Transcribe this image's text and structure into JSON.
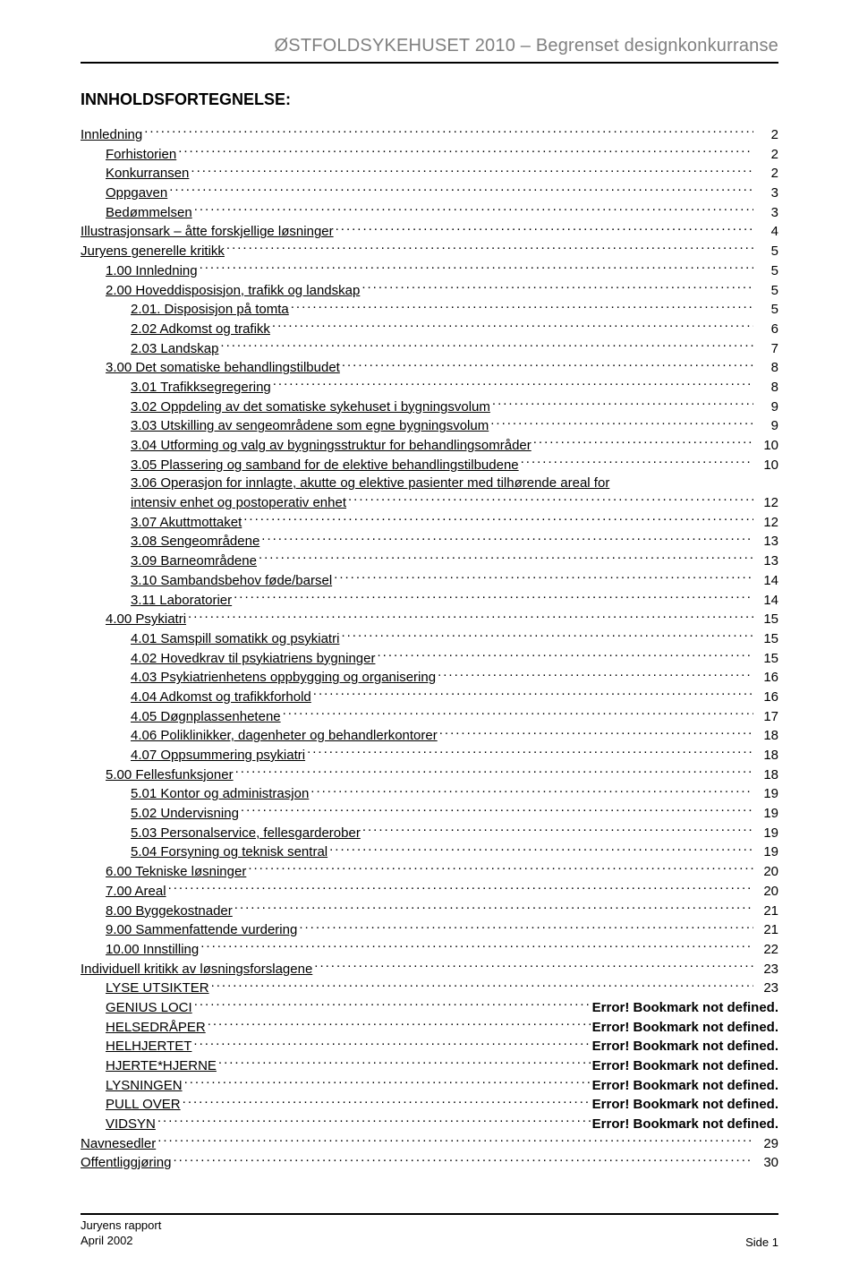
{
  "header": "ØSTFOLDSYKEHUSET 2010  – Begrenset designkonkurranse",
  "title": "INNHOLDSFORTEGNELSE:",
  "error_text": "Error! Bookmark not defined.",
  "toc": [
    {
      "indent": 0,
      "label": "Innledning",
      "page": "2"
    },
    {
      "indent": 1,
      "label": "Forhistorien",
      "page": "2"
    },
    {
      "indent": 1,
      "label": "Konkurransen",
      "page": "2"
    },
    {
      "indent": 1,
      "label": "Oppgaven",
      "page": "3"
    },
    {
      "indent": 1,
      "label": "Bedømmelsen",
      "page": "3"
    },
    {
      "indent": 0,
      "label": "Illustrasjonsark – åtte forskjellige løsninger",
      "page": "4"
    },
    {
      "indent": 0,
      "label": "Juryens generelle kritikk",
      "page": "5"
    },
    {
      "indent": 1,
      "label": "1.00 Innledning",
      "page": "5"
    },
    {
      "indent": 1,
      "label": "2.00 Hoveddisposisjon, trafikk og landskap",
      "page": "5"
    },
    {
      "indent": 2,
      "label": "2.01. Disposisjon på tomta",
      "page": "5"
    },
    {
      "indent": 2,
      "label": "2.02 Adkomst og trafikk",
      "page": "6"
    },
    {
      "indent": 2,
      "label": "2.03  Landskap",
      "page": "7"
    },
    {
      "indent": 1,
      "label": "3.00  Det somatiske behandlingstilbudet",
      "page": "8"
    },
    {
      "indent": 2,
      "label": "3.01  Trafikksegregering",
      "page": "8"
    },
    {
      "indent": 2,
      "label": "3.02  Oppdeling av det somatiske sykehuset i bygningsvolum",
      "page": "9"
    },
    {
      "indent": 2,
      "label": "3.03  Utskilling av sengeområdene som egne bygningsvolum",
      "page": "9"
    },
    {
      "indent": 2,
      "label": "3.04  Utforming og valg av bygningsstruktur for behandlingsområder",
      "page": "10"
    },
    {
      "indent": 2,
      "label": "3.05   Plassering og samband for de elektive behandlingstilbudene",
      "page": "10"
    },
    {
      "indent": 2,
      "label": "3.06  Operasjon for innlagte, akutte og elektive pasienter med tilhørende areal for",
      "cont": "intensiv enhet og postoperativ enhet",
      "page": "12"
    },
    {
      "indent": 2,
      "label": "3.07  Akuttmottaket",
      "page": "12"
    },
    {
      "indent": 2,
      "label": "3.08  Sengeområdene",
      "page": "13"
    },
    {
      "indent": 2,
      "label": "3.09   Barneområdene",
      "page": "13"
    },
    {
      "indent": 2,
      "label": "3.10  Sambandsbehov føde/barsel",
      "page": "14"
    },
    {
      "indent": 2,
      "label": "3.11  Laboratorier",
      "page": "14"
    },
    {
      "indent": 1,
      "label": "4.00 Psykiatri",
      "page": "15"
    },
    {
      "indent": 2,
      "label": "4.01  Samspill somatikk og psykiatri",
      "page": "15"
    },
    {
      "indent": 2,
      "label": "4.02 Hovedkrav til psykiatriens bygninger",
      "page": "15"
    },
    {
      "indent": 2,
      "label": "4.03 Psykiatrienhetens oppbygging og organisering",
      "page": "16"
    },
    {
      "indent": 2,
      "label": "4.04 Adkomst og trafikkforhold",
      "page": "16"
    },
    {
      "indent": 2,
      "label": "4.05 Døgnplassenhetene",
      "page": "17"
    },
    {
      "indent": 2,
      "label": "4.06 Poliklinikker, dagenheter og  behandlerkontorer",
      "page": "18"
    },
    {
      "indent": 2,
      "label": "4.07 Oppsummering psykiatri",
      "page": "18"
    },
    {
      "indent": 1,
      "label": "5.00 Fellesfunksjoner",
      "page": "18"
    },
    {
      "indent": 2,
      "label": "5.01  Kontor og administrasjon",
      "page": "19"
    },
    {
      "indent": 2,
      "label": "5.02  Undervisning",
      "page": "19"
    },
    {
      "indent": 2,
      "label": "5.03 Personalservice, fellesgarderober",
      "page": "19"
    },
    {
      "indent": 2,
      "label": "5.04 Forsyning og teknisk sentral",
      "page": "19"
    },
    {
      "indent": 1,
      "label": "6.00  Tekniske løsninger",
      "page": "20"
    },
    {
      "indent": 1,
      "label": "7.00 Areal",
      "page": "20"
    },
    {
      "indent": 1,
      "label": "8.00  Byggekostnader",
      "page": "21"
    },
    {
      "indent": 1,
      "label": "9.00  Sammenfattende vurdering",
      "page": "21"
    },
    {
      "indent": 1,
      "label": "10.00 Innstilling",
      "page": "22"
    },
    {
      "indent": 0,
      "label": "Individuell kritikk av løsningsforslagene",
      "page": "23"
    },
    {
      "indent": 1,
      "label": "LYSE UTSIKTER",
      "page": "23"
    },
    {
      "indent": 1,
      "label": "GENIUS LOCI",
      "err": true
    },
    {
      "indent": 1,
      "label": "HELSEDRÅPER",
      "err": true
    },
    {
      "indent": 1,
      "label": "HELHJERTET",
      "err": true
    },
    {
      "indent": 1,
      "label": "HJERTE*HJERNE",
      "err": true
    },
    {
      "indent": 1,
      "label": "LYSNINGEN",
      "err": true
    },
    {
      "indent": 1,
      "label": "PULL OVER",
      "err": true
    },
    {
      "indent": 1,
      "label": "VIDSYN",
      "err": true
    },
    {
      "indent": 0,
      "label": "Navnesedler",
      "page": "29"
    },
    {
      "indent": 0,
      "label": "Offentliggjøring",
      "page": "30"
    }
  ],
  "footer": {
    "line1": "Juryens rapport",
    "line2": "April 2002",
    "right": "Side  1"
  }
}
